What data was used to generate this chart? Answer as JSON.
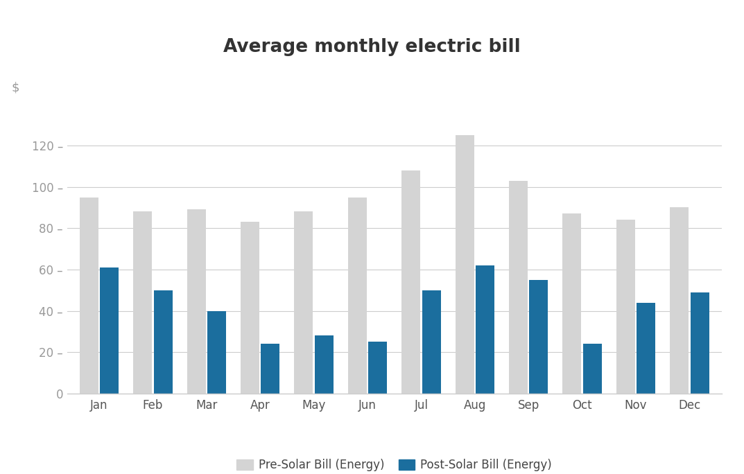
{
  "title": "Average monthly electric bill",
  "months": [
    "Jan",
    "Feb",
    "Mar",
    "Apr",
    "May",
    "Jun",
    "Jul",
    "Aug",
    "Sep",
    "Oct",
    "Nov",
    "Dec"
  ],
  "pre_solar": [
    95,
    88,
    89,
    83,
    88,
    95,
    108,
    125,
    103,
    87,
    84,
    90
  ],
  "post_solar": [
    61,
    50,
    40,
    24,
    28,
    25,
    50,
    62,
    55,
    24,
    44,
    49
  ],
  "pre_solar_color": "#d4d4d4",
  "post_solar_color": "#1b6e9e",
  "ylabel": "$",
  "ylim": [
    0,
    140
  ],
  "yticks": [
    0,
    20,
    40,
    60,
    80,
    100,
    120
  ],
  "legend_pre": "Pre-Solar Bill (Energy)",
  "legend_post": "Post-Solar Bill (Energy)",
  "background_color": "#ffffff",
  "title_fontsize": 19,
  "axis_fontsize": 12,
  "legend_fontsize": 12,
  "tick_label_color": "#999999",
  "xticklabel_color": "#555555",
  "title_color": "#333333"
}
